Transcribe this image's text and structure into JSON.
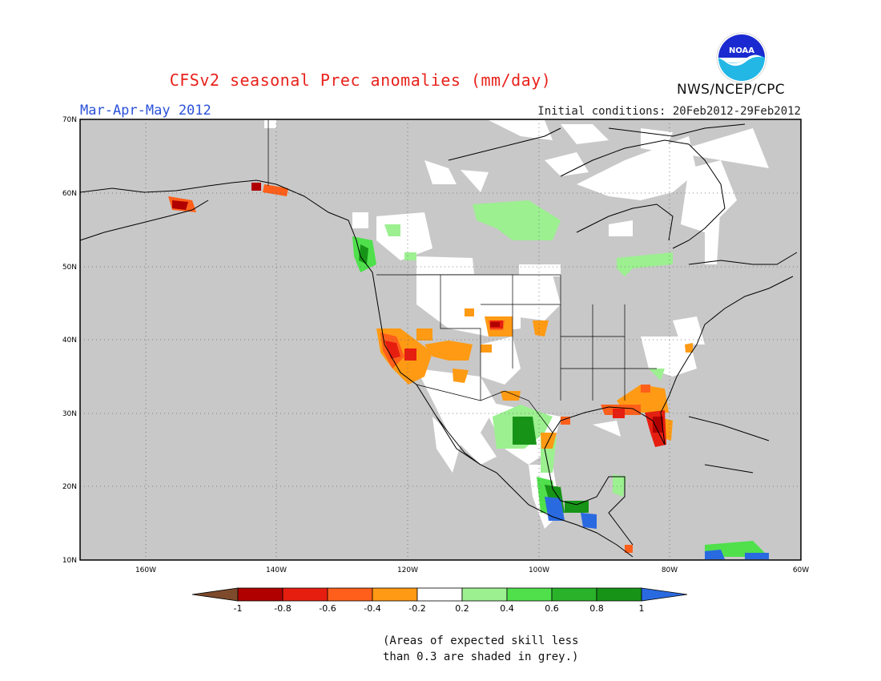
{
  "header": {
    "title": "CFSv2 seasonal Prec anomalies (mm/day)",
    "season": "Mar-Apr-May 2012",
    "initial_conditions": "Initial conditions: 20Feb2012-29Feb2012",
    "agency": "NWS/NCEP/CPC",
    "logo_text": "NOAA"
  },
  "map": {
    "lon_range": [
      -170,
      -60
    ],
    "lat_range": [
      10,
      70
    ],
    "lon_tick_labels": [
      "160W",
      "140W",
      "120W",
      "100W",
      "80W",
      "60W"
    ],
    "lat_tick_labels": [
      "10N",
      "20N",
      "30N",
      "40N",
      "50N",
      "60N",
      "70N"
    ],
    "background_color": "#c8c8c8",
    "gridlines": "dotted"
  },
  "legend": {
    "tick_labels": [
      "-1",
      "-0.8",
      "-0.6",
      "-0.4",
      "-0.2",
      "0.2",
      "0.4",
      "0.6",
      "0.8",
      "1"
    ],
    "colors": [
      "#7d4a2b",
      "#b00000",
      "#e61e10",
      "#ff5f1a",
      "#ff9a14",
      "#ffffff",
      "#9cf090",
      "#4fe04c",
      "#2ab22a",
      "#179417",
      "#2a6ae0"
    ]
  },
  "note": {
    "line1": "(Areas of expected skill less",
    "line2": "than 0.3 are shaded in grey.)"
  }
}
